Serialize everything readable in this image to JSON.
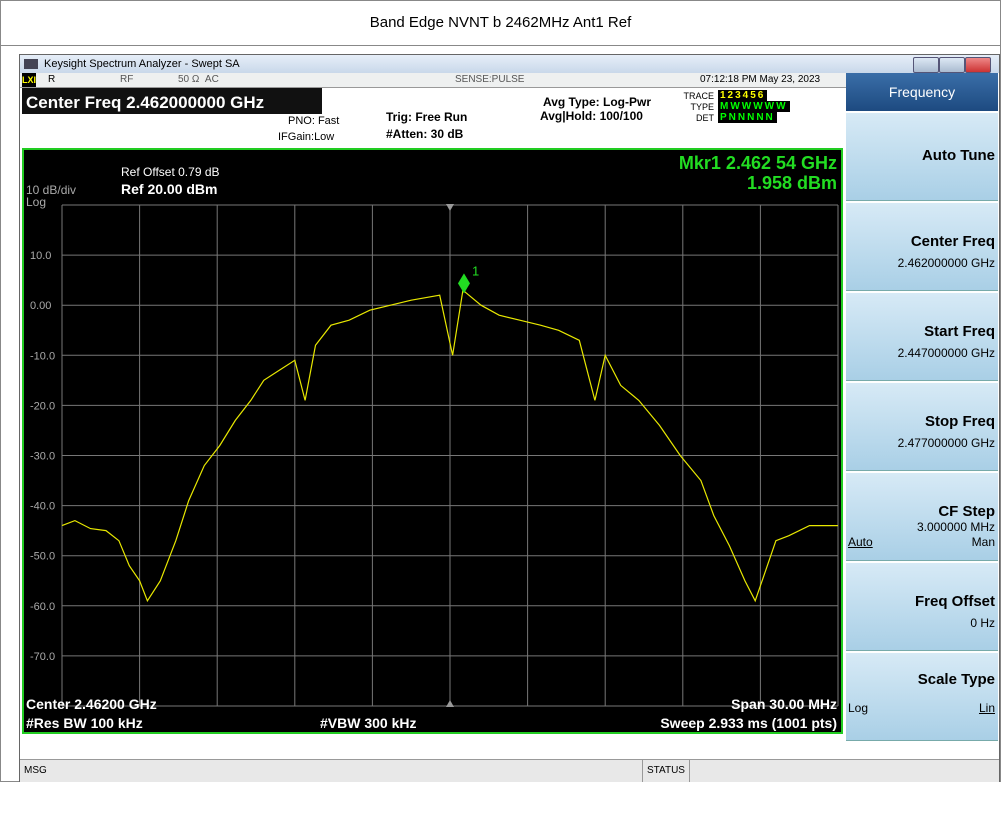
{
  "page_title": "Band Edge NVNT b 2462MHz Ant1 Ref",
  "window_title": "Keysight Spectrum Analyzer - Swept SA",
  "status_row": {
    "r": "R",
    "rf": "RF",
    "impedance": "50 Ω  AC",
    "sense": "SENSE:PULSE",
    "time": "07:12:18 PM May 23, 2023"
  },
  "settings": {
    "center_freq": "Center Freq 2.462000000 GHz",
    "pno": "PNO: Fast",
    "ifgain": "IFGain:Low",
    "trig": "Trig: Free Run",
    "atten": "#Atten: 30 dB",
    "avg_type": "Avg Type: Log-Pwr",
    "avg_hold": "Avg|Hold: 100/100"
  },
  "trace_panel": {
    "labels": [
      "TRACE",
      "TYPE",
      "DET"
    ],
    "rows": [
      "123456",
      "MWWWWW",
      "PNNNNN"
    ]
  },
  "graph": {
    "ref_offset": "Ref Offset 0.79 dB",
    "scale": "10 dB/div",
    "ref": "Ref 20.00 dBm",
    "log": "Log"
  },
  "chart_data": {
    "type": "line",
    "x": [
      2.447,
      2.4475,
      2.4481,
      2.4487,
      2.4492,
      2.4496,
      2.45,
      2.4503,
      2.4508,
      2.4514,
      2.4519,
      2.4525,
      2.4531,
      2.4537,
      2.4543,
      2.4548,
      2.4554,
      2.456,
      2.4564,
      2.4568,
      2.4574,
      2.4581,
      2.4589,
      2.4597,
      2.4605,
      2.4616,
      2.4621,
      2.4625,
      2.4632,
      2.4639,
      2.4647,
      2.4655,
      2.4662,
      2.467,
      2.4676,
      2.468,
      2.4686,
      2.4693,
      2.4701,
      2.4709,
      2.4717,
      2.4722,
      2.4728,
      2.4734,
      2.4738,
      2.4742,
      2.4746,
      2.4751,
      2.4759,
      2.477
    ],
    "values": [
      -44,
      -43,
      -44.6,
      -45,
      -47,
      -52,
      -55,
      -59,
      -55,
      -47,
      -39,
      -32,
      -28,
      -23,
      -19,
      -15,
      -13,
      -11,
      -19,
      -8,
      -4,
      -3,
      -1,
      0,
      1,
      2,
      -10,
      3,
      0,
      -2,
      -3,
      -4,
      -5,
      -7,
      -19,
      -10,
      -16,
      -19,
      -24,
      -30,
      -35,
      -42,
      -48,
      -55,
      -59,
      -53,
      -47,
      -46,
      -44,
      -44
    ],
    "color": "#e8e800",
    "xlim": [
      2.447,
      2.477
    ],
    "ylim": [
      -80,
      20
    ],
    "yticks": [
      {
        "value": 10,
        "label": "10.0"
      },
      {
        "value": 0,
        "label": "0.00"
      },
      {
        "value": -10,
        "label": "-10.0"
      },
      {
        "value": -20,
        "label": "-20.0"
      },
      {
        "value": -30,
        "label": "-30.0"
      },
      {
        "value": -40,
        "label": "-40.0"
      },
      {
        "value": -50,
        "label": "-50.0"
      },
      {
        "value": -60,
        "label": "-60.0"
      },
      {
        "value": -70,
        "label": "-70.0"
      }
    ],
    "grid": true,
    "marker": {
      "number": "1",
      "x": 2.46254,
      "y": 1.958,
      "label": "Mkr1 2.462 54 GHz",
      "value_label": "1.958 dBm",
      "color": "#22dd22"
    }
  },
  "footer": {
    "center": "Center 2.46200 GHz",
    "res_bw": "#Res BW 100 kHz",
    "vbw": "#VBW 300 kHz",
    "span": "Span 30.00 MHz",
    "sweep": "Sweep  2.933 ms (1001 pts)"
  },
  "softkeys": {
    "title": "Frequency",
    "keys": [
      {
        "label": "Auto Tune"
      },
      {
        "label": "Center Freq",
        "value": "2.462000000 GHz"
      },
      {
        "label": "Start Freq",
        "value": "2.447000000 GHz"
      },
      {
        "label": "Stop Freq",
        "value": "2.477000000 GHz"
      },
      {
        "label": "CF Step",
        "value": "3.000000 MHz",
        "left": "Auto",
        "right": "Man"
      },
      {
        "label": "Freq Offset",
        "value": "0 Hz"
      },
      {
        "label": "Scale Type",
        "left": "Log",
        "right": "Lin"
      }
    ]
  },
  "bottom_bar": {
    "msg": "MSG",
    "status": "STATUS"
  }
}
